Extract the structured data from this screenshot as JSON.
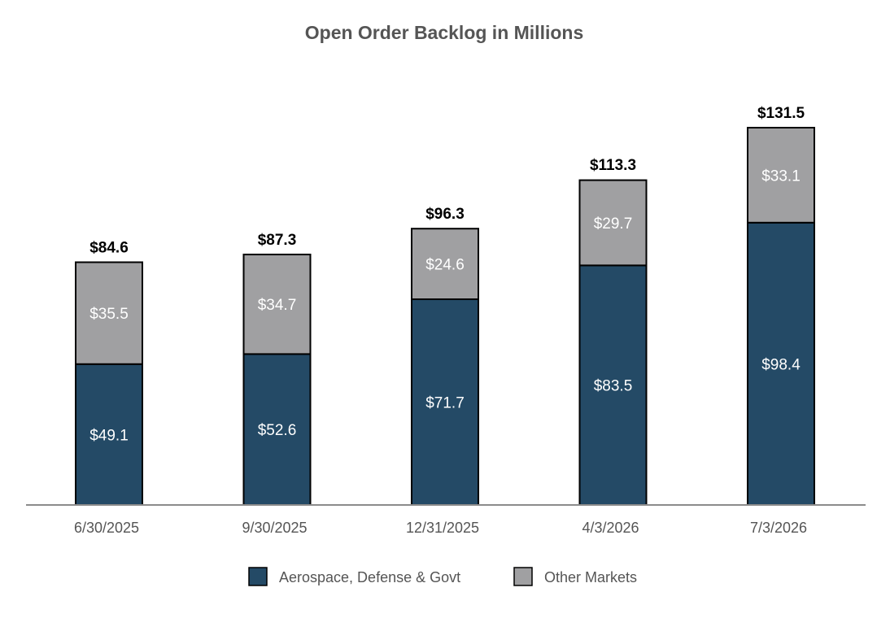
{
  "chart_data": {
    "type": "bar",
    "stacked": true,
    "title": "Open Order Backlog in Millions",
    "xlabel": "",
    "ylabel": "",
    "categories": [
      "6/30/2025",
      "9/30/2025",
      "12/31/2025",
      "4/3/2026",
      "7/3/2026"
    ],
    "series": [
      {
        "name": "Aerospace, Defense & Govt",
        "color": "#244a66",
        "values": [
          49.1,
          52.6,
          71.7,
          83.5,
          98.4
        ],
        "labels": [
          "$49.1",
          "$52.6",
          "$71.7",
          "$83.5",
          "$98.4"
        ]
      },
      {
        "name": "Other Markets",
        "color": "#a0a0a2",
        "values": [
          35.5,
          34.7,
          24.6,
          29.7,
          33.1
        ],
        "labels": [
          "$35.5",
          "$34.7",
          "$24.6",
          "$29.7",
          "$33.1"
        ]
      }
    ],
    "totals": [
      84.6,
      87.3,
      96.3,
      113.3,
      131.5
    ],
    "total_labels": [
      "$84.6",
      "$87.3",
      "$96.3",
      "$113.3",
      "$131.5"
    ],
    "ylim": [
      0,
      131.5
    ],
    "grid": false,
    "legend_position": "bottom"
  }
}
